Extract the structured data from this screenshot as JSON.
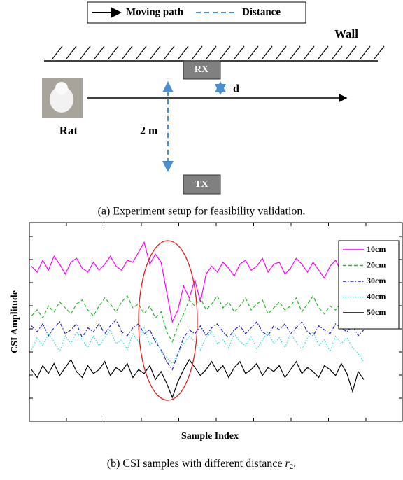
{
  "diagram": {
    "legend": {
      "moving_path": "Moving path",
      "distance": "Distance"
    },
    "labels": {
      "wall": "Wall",
      "rx": "RX",
      "tx": "TX",
      "rat": "Rat",
      "d": "d",
      "distance_value": "2 m"
    },
    "caption": "(a) Experiment setup for feasibility validation."
  },
  "chart_data": {
    "type": "line",
    "x_label": "Sample Index",
    "y_label": "CSI Amplitude",
    "ylim": [
      0,
      10
    ],
    "series": [
      {
        "name": "10cm",
        "color": "#ff00ff",
        "style": "solid",
        "values": [
          7.8,
          7.5,
          8.1,
          7.6,
          8.3,
          7.9,
          7.4,
          8.0,
          8.2,
          7.7,
          7.5,
          8.0,
          7.6,
          7.9,
          8.3,
          7.8,
          7.6,
          8.1,
          8.0,
          8.5,
          9.0,
          7.9,
          8.4,
          8.0,
          6.5,
          5.0,
          5.6,
          6.8,
          6.2,
          7.1,
          6.0,
          7.4,
          7.8,
          7.5,
          8.0,
          7.7,
          7.3,
          7.9,
          8.1,
          7.6,
          7.8,
          8.2,
          7.5,
          7.9,
          8.0,
          7.4,
          7.7,
          8.2,
          7.9,
          7.5,
          8.0,
          7.6,
          7.2,
          7.8,
          8.1,
          7.5,
          7.3,
          7.7,
          7.0,
          7.4
        ]
      },
      {
        "name": "20cm",
        "color": "#22bb22",
        "style": "dashed",
        "values": [
          5.3,
          5.6,
          5.2,
          5.8,
          5.5,
          6.0,
          5.7,
          5.4,
          5.9,
          6.1,
          5.6,
          5.3,
          5.8,
          6.2,
          5.9,
          5.5,
          6.0,
          6.3,
          5.7,
          5.9,
          5.4,
          5.8,
          5.2,
          5.5,
          4.5,
          4.0,
          4.8,
          5.4,
          6.1,
          5.8,
          6.2,
          5.6,
          5.9,
          6.3,
          5.7,
          6.0,
          5.5,
          5.8,
          6.2,
          5.6,
          5.9,
          6.1,
          5.4,
          5.7,
          6.0,
          5.6,
          5.8,
          6.2,
          5.5,
          5.9,
          6.3,
          5.7,
          5.4,
          5.8,
          5.6,
          6.0,
          5.5,
          5.3,
          5.7,
          5.4
        ]
      },
      {
        "name": "30cm",
        "color": "#2222cc",
        "style": "dashdot",
        "values": [
          4.8,
          4.5,
          4.9,
          4.3,
          4.7,
          5.0,
          4.4,
          4.6,
          4.9,
          4.2,
          4.7,
          4.5,
          4.9,
          4.4,
          4.8,
          5.1,
          4.5,
          4.3,
          4.7,
          4.9,
          4.4,
          4.6,
          4.0,
          3.6,
          3.0,
          2.6,
          3.4,
          4.2,
          4.6,
          4.4,
          4.8,
          4.3,
          4.7,
          4.9,
          4.5,
          4.2,
          4.6,
          4.8,
          4.4,
          4.7,
          5.0,
          4.5,
          4.3,
          4.8,
          4.6,
          4.9,
          4.4,
          4.7,
          5.0,
          4.5,
          4.3,
          4.8,
          4.6,
          4.4,
          4.9,
          4.7,
          4.5,
          4.8,
          4.3,
          4.6
        ]
      },
      {
        "name": "40cm",
        "color": "#33dddd",
        "style": "dotted",
        "values": [
          3.6,
          4.2,
          3.8,
          4.4,
          4.0,
          3.5,
          4.3,
          3.9,
          4.5,
          4.1,
          3.7,
          4.3,
          3.8,
          4.2,
          4.6,
          3.9,
          4.1,
          3.6,
          4.4,
          4.0,
          4.7,
          3.8,
          4.2,
          3.5,
          3.2,
          2.9,
          3.4,
          3.9,
          4.3,
          4.0,
          3.6,
          4.2,
          4.5,
          3.9,
          4.1,
          3.7,
          4.4,
          4.0,
          3.8,
          4.3,
          3.6,
          4.1,
          4.5,
          3.9,
          4.2,
          3.7,
          4.4,
          4.0,
          3.6,
          4.2,
          4.5,
          3.8,
          4.1,
          3.5,
          4.3,
          3.9,
          4.2,
          3.7,
          3.4,
          3.0
        ]
      },
      {
        "name": "50cm",
        "color": "#000000",
        "style": "solid",
        "values": [
          2.6,
          2.2,
          2.8,
          2.4,
          2.9,
          2.3,
          2.7,
          3.1,
          2.5,
          2.2,
          2.8,
          2.4,
          2.6,
          3.0,
          2.3,
          2.7,
          2.5,
          2.9,
          2.2,
          2.6,
          2.4,
          2.8,
          2.1,
          2.5,
          1.9,
          1.2,
          2.0,
          2.6,
          3.1,
          2.7,
          2.3,
          2.6,
          3.0,
          2.5,
          2.8,
          2.2,
          2.7,
          3.0,
          2.4,
          2.6,
          2.9,
          2.3,
          2.7,
          2.5,
          2.8,
          2.2,
          2.6,
          3.0,
          2.4,
          2.7,
          2.5,
          2.2,
          2.8,
          2.6,
          2.3,
          2.9,
          2.4,
          1.5,
          2.5,
          2.1
        ]
      }
    ]
  },
  "caption": {
    "text": "(b) CSI samples with different distance ",
    "var": "r",
    "sub": "2",
    "end": "."
  }
}
